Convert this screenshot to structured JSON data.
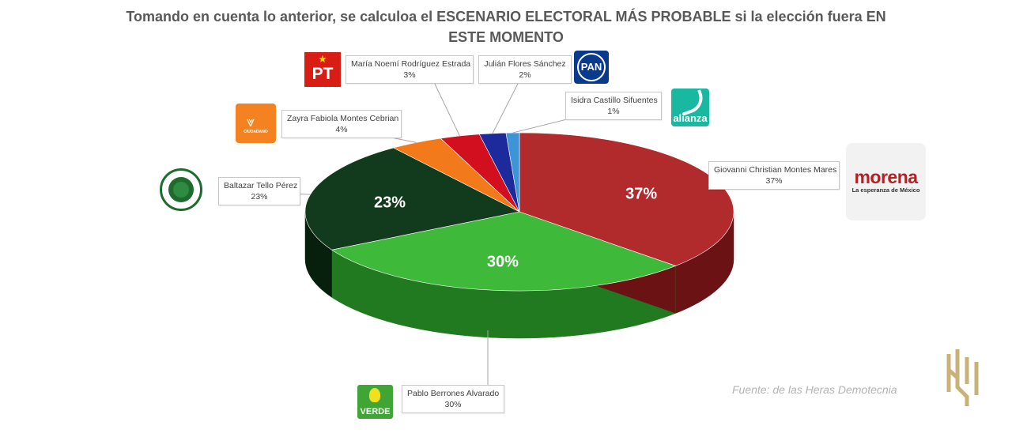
{
  "title": "Tomando en cuenta lo anterior, se calculoa el ESCENARIO ELECTORAL MÁS PROBABLE si la elección fuera EN ESTE MOMENTO",
  "source": "Fuente: de las Heras Demotecnia",
  "chart_data": {
    "type": "pie",
    "title": "Tomando en cuenta lo anterior, se calculoa el ESCENARIO ELECTORAL MÁS PROBABLE si la elección fuera EN ESTE MOMENTO",
    "slices": [
      {
        "name": "Giovanni Christian Montes Mares",
        "value": 37,
        "label": "37%",
        "party": "morena",
        "color": "#b12a2c",
        "side_color": "#6b1214"
      },
      {
        "name": "Pablo Berrones Alvarado",
        "value": 30,
        "label": "30%",
        "party": "verde",
        "color": "#3fb93a",
        "side_color": "#227a20"
      },
      {
        "name": "Baltazar Tello Pérez",
        "value": 23,
        "label": "23%",
        "party": "pri",
        "color": "#123a1c",
        "side_color": "#07200e"
      },
      {
        "name": "Zayra Fabiola Montes Cebrian",
        "value": 4,
        "label": "4%",
        "party": "movimiento-ciudadano",
        "color": "#f27a1a",
        "side_color": "#a8500c"
      },
      {
        "name": "María Noemí Rodríguez Estrada",
        "value": 3,
        "label": "3%",
        "party": "pt",
        "color": "#d10f1f",
        "side_color": "#850810"
      },
      {
        "name": "Julián Flores Sánchez",
        "value": 2,
        "label": "2%",
        "party": "pan",
        "color": "#1c2a9c",
        "side_color": "#0e165e"
      },
      {
        "name": "Isidra Castillo Sifuentes",
        "value": 1,
        "label": "1%",
        "party": "nueva-alianza",
        "color": "#3d95d6",
        "side_color": "#205a88"
      }
    ],
    "legend": "callouts"
  },
  "logos": {
    "pt": "PT",
    "pan": "PAN",
    "nueva_alianza": "alianza",
    "movimiento_ciudadano": "CIUDADANO",
    "morena": "morena",
    "morena_sub": "La esperanza de México",
    "verde": "VERDE"
  }
}
